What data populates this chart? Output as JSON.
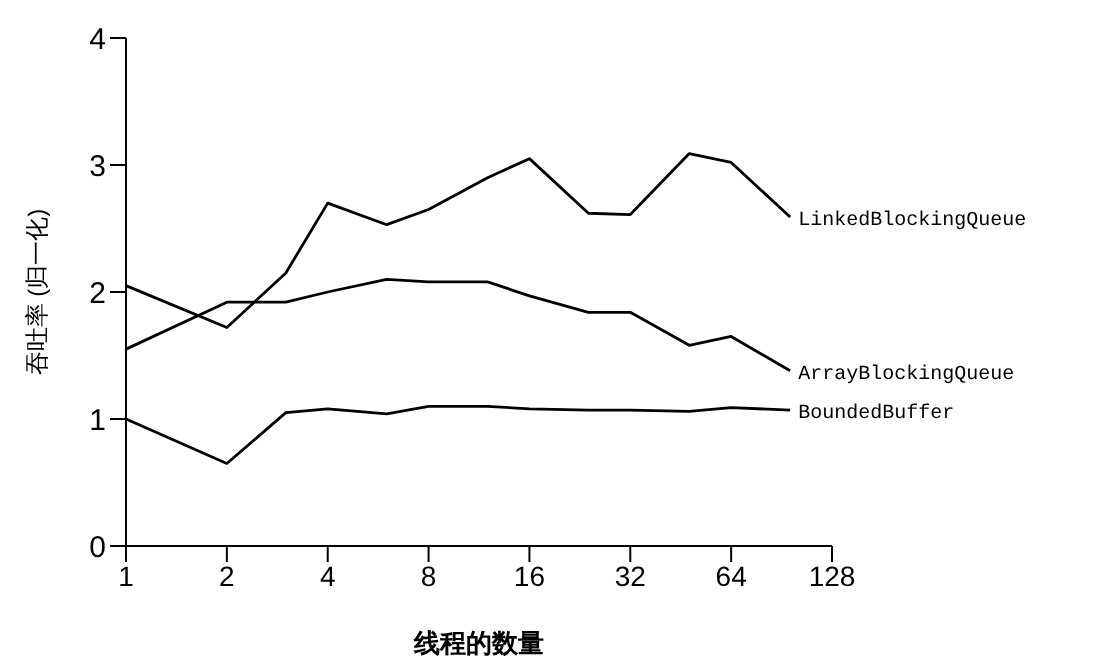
{
  "chart_data": {
    "type": "line",
    "xlabel": "线程的数量",
    "ylabel": "吞吐率 (归一化)",
    "x": [
      1,
      2,
      3,
      4,
      6,
      8,
      12,
      16,
      24,
      32,
      48,
      64,
      96
    ],
    "series": [
      {
        "name": "LinkedBlockingQueue",
        "color": "#000000",
        "values": [
          2.05,
          1.72,
          2.15,
          2.7,
          2.53,
          2.65,
          2.9,
          3.05,
          2.62,
          2.61,
          3.09,
          3.02,
          2.59
        ]
      },
      {
        "name": "ArrayBlockingQueue",
        "color": "#000000",
        "values": [
          1.55,
          1.92,
          1.92,
          2.0,
          2.1,
          2.08,
          2.08,
          1.97,
          1.84,
          1.84,
          1.58,
          1.65,
          1.38
        ]
      },
      {
        "name": "BoundedBuffer",
        "color": "#000000",
        "values": [
          1.0,
          0.65,
          1.05,
          1.08,
          1.04,
          1.1,
          1.1,
          1.08,
          1.07,
          1.07,
          1.06,
          1.09,
          1.07
        ]
      }
    ],
    "xlim": [
      1,
      128
    ],
    "xticks": [
      1,
      2,
      4,
      8,
      16,
      32,
      64,
      128
    ],
    "ylim": [
      0,
      4
    ],
    "yticks": [
      0,
      1,
      2,
      3,
      4
    ],
    "log": "x",
    "legend": false,
    "marker": "none",
    "line_style": "solid"
  }
}
